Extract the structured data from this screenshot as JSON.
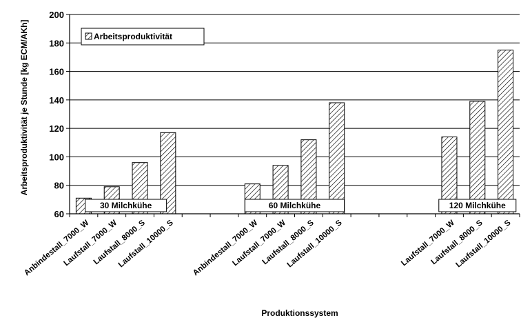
{
  "chart_data": {
    "type": "bar",
    "title": "",
    "xlabel": "Produktionssystem",
    "ylabel": "Arbeitsproduktivität je Stunde [kg ECM/AKh]",
    "ylim": [
      60,
      200
    ],
    "yticks": [
      "60",
      "80",
      "100",
      "120",
      "140",
      "160",
      "180",
      "200"
    ],
    "grid": true,
    "legend_position": "top-left",
    "series": [
      {
        "name": "Arbeitsproduktivität",
        "pattern": "diagonal-hatch",
        "color": "#000000"
      }
    ],
    "groups": [
      {
        "label": "30 Milchkühe",
        "categories": [
          "Anbindestall_7000_W",
          "Laufstall_7000_W",
          "Laufstall_8000_S",
          "Laufstall_10000_S"
        ],
        "values": [
          71,
          79,
          96,
          117
        ]
      },
      {
        "label": "60 Milchkühe",
        "categories": [
          "Anbindestall_7000_W",
          "Laufstall_7000_W",
          "Laufstall_8000_S",
          "Laufstall_10000_S"
        ],
        "values": [
          81,
          94,
          112,
          138
        ]
      },
      {
        "label": "120 Milchkühe",
        "categories": [
          "Laufstall_7000_W",
          "Laufstall_8000_S",
          "Laufstall_10000_S"
        ],
        "values": [
          114,
          139,
          175
        ]
      }
    ]
  }
}
